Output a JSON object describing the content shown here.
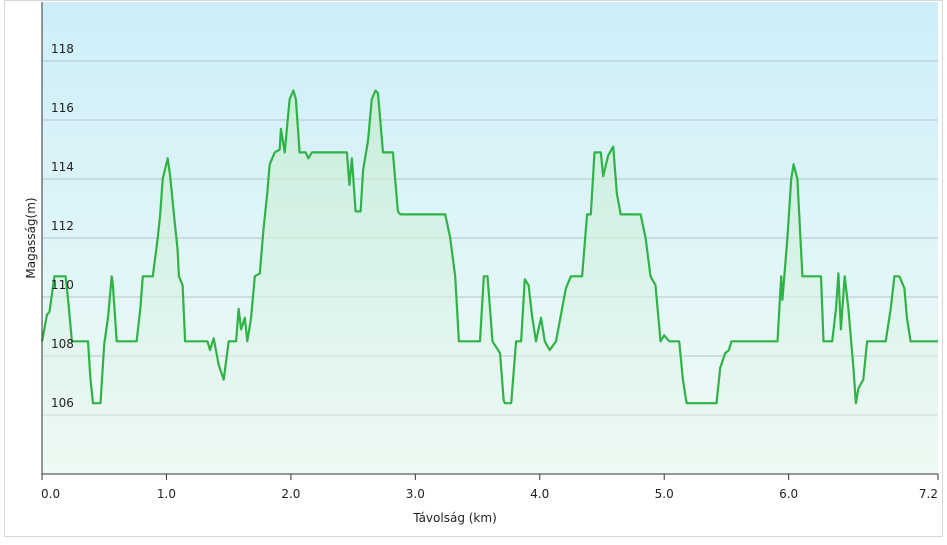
{
  "chart_data": {
    "type": "area",
    "xlabel": "Távolság  (km)",
    "ylabel": "Magasság(m)",
    "x": [
      0,
      0.04,
      0.06,
      0.1,
      0.19,
      0.21,
      0.24,
      0.37,
      0.39,
      0.41,
      0.47,
      0.5,
      0.53,
      0.56,
      0.57,
      0.6,
      0.76,
      0.79,
      0.81,
      0.89,
      0.93,
      0.95,
      0.97,
      1.01,
      1.03,
      1.06,
      1.09,
      1.1,
      1.13,
      1.15,
      1.33,
      1.35,
      1.38,
      1.42,
      1.46,
      1.5,
      1.56,
      1.58,
      1.6,
      1.63,
      1.65,
      1.68,
      1.71,
      1.75,
      1.78,
      1.81,
      1.83,
      1.87,
      1.91,
      1.92,
      1.95,
      1.99,
      2.02,
      2.04,
      2.07,
      2.12,
      2.14,
      2.17,
      2.24,
      2.45,
      2.47,
      2.49,
      2.52,
      2.56,
      2.58,
      2.62,
      2.65,
      2.68,
      2.7,
      2.74,
      2.82,
      2.86,
      2.88,
      3.24,
      3.28,
      3.32,
      3.35,
      3.52,
      3.55,
      3.58,
      3.62,
      3.68,
      3.71,
      3.72,
      3.77,
      3.81,
      3.85,
      3.88,
      3.91,
      3.94,
      3.97,
      4.01,
      4.04,
      4.08,
      4.13,
      4.21,
      4.25,
      4.34,
      4.38,
      4.41,
      4.44,
      4.49,
      4.51,
      4.55,
      4.59,
      4.62,
      4.65,
      4.81,
      4.85,
      4.89,
      4.93,
      4.97,
      5.0,
      5.04,
      5.12,
      5.15,
      5.18,
      5.42,
      5.45,
      5.49,
      5.52,
      5.54,
      5.91,
      5.94,
      5.95,
      5.99,
      6.02,
      6.04,
      6.07,
      6.11,
      6.14,
      6.26,
      6.28,
      6.35,
      6.38,
      6.4,
      6.42,
      6.45,
      6.48,
      6.52,
      6.54,
      6.56,
      6.6,
      6.63,
      6.78,
      6.82,
      6.85,
      6.89,
      6.93,
      6.95,
      6.98,
      7.2
    ],
    "values": [
      108.5,
      109.4,
      109.5,
      110.7,
      110.7,
      109.9,
      108.5,
      108.5,
      107.2,
      106.4,
      106.4,
      108.4,
      109.3,
      110.7,
      110.4,
      108.5,
      108.5,
      109.6,
      110.7,
      110.7,
      112.0,
      112.8,
      114.0,
      114.7,
      114.1,
      112.8,
      111.6,
      110.7,
      110.4,
      108.5,
      108.5,
      108.2,
      108.6,
      107.7,
      107.2,
      108.5,
      108.5,
      109.6,
      108.9,
      109.3,
      108.5,
      109.3,
      110.7,
      110.8,
      112.3,
      113.5,
      114.5,
      114.9,
      115.0,
      115.7,
      114.9,
      116.7,
      117.0,
      116.7,
      114.9,
      114.9,
      114.7,
      114.9,
      114.9,
      114.9,
      113.8,
      114.7,
      112.9,
      112.9,
      114.3,
      115.3,
      116.7,
      117.0,
      116.9,
      114.9,
      114.9,
      112.9,
      112.8,
      112.8,
      112.0,
      110.7,
      108.5,
      108.5,
      110.7,
      110.7,
      108.5,
      108.1,
      106.5,
      106.4,
      106.4,
      108.5,
      108.5,
      110.6,
      110.4,
      109.3,
      108.5,
      109.3,
      108.5,
      108.2,
      108.5,
      110.3,
      110.7,
      110.7,
      112.8,
      112.8,
      114.9,
      114.9,
      114.1,
      114.8,
      115.1,
      113.5,
      112.8,
      112.8,
      112.0,
      110.7,
      110.4,
      108.5,
      108.7,
      108.5,
      108.5,
      107.2,
      106.4,
      106.4,
      107.6,
      108.1,
      108.2,
      108.5,
      108.5,
      110.7,
      109.9,
      112.0,
      114.0,
      114.5,
      114.0,
      110.7,
      110.7,
      110.7,
      108.5,
      108.5,
      109.6,
      110.8,
      108.9,
      110.7,
      109.6,
      107.6,
      106.4,
      106.9,
      107.2,
      108.5,
      108.5,
      109.6,
      110.7,
      110.7,
      110.3,
      109.3,
      108.5,
      108.5
    ],
    "color": "#2fb346",
    "fill": "#bfe8cf",
    "xlim": [
      0,
      7.2
    ],
    "ylim": [
      104,
      120
    ],
    "xticks": [
      {
        "value": 0,
        "label": "0.0"
      },
      {
        "value": 1,
        "label": "1.0"
      },
      {
        "value": 2,
        "label": "2.0"
      },
      {
        "value": 3,
        "label": "3.0"
      },
      {
        "value": 4,
        "label": "4.0"
      },
      {
        "value": 5,
        "label": "5.0"
      },
      {
        "value": 6,
        "label": "6.0"
      },
      {
        "value": 7.2,
        "label": "7.2"
      }
    ],
    "yticks": [
      106,
      108,
      110,
      112,
      114,
      116,
      118
    ],
    "grid": true
  }
}
